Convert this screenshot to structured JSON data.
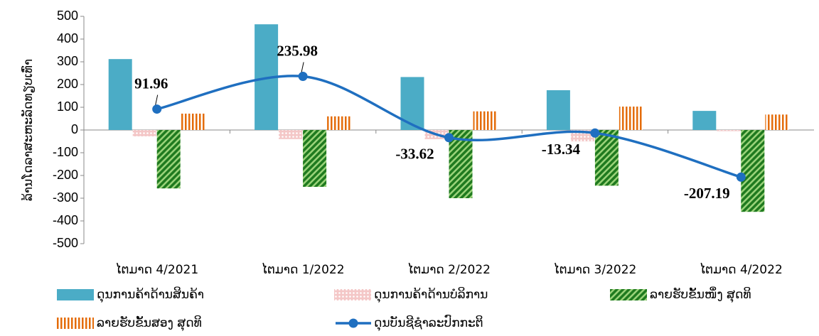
{
  "chart_data": {
    "type": "bar",
    "y_label": "ລ້ານໂດລາສະຫະລັດທຽບເທົ່າ",
    "categories": [
      "ໄຕມາດ 4/2021",
      "ໄຕມາດ 1/2022",
      "ໄຕມາດ 2/2022",
      "ໄຕມາດ 3/2022",
      "ໄຕມາດ 4/2022"
    ],
    "series": [
      {
        "name": "ດຸນການຄ້າດ້ານສິນຄ້າ",
        "color": "#4bacc6",
        "pattern": "solid",
        "values": [
          312,
          465,
          233,
          175,
          84
        ]
      },
      {
        "name": "ດຸນການຄ້າດ້ານບໍລິການ",
        "color": "#e6a0a0",
        "pattern": "dots",
        "values": [
          -28,
          -40,
          -40,
          -50,
          -5
        ]
      },
      {
        "name": "ລາຍຮັບຂັ້ນໜຶ່ງ ສຸດທິ",
        "color": "#339933",
        "pattern": "diagonal",
        "values": [
          -257,
          -250,
          -300,
          -245,
          -360
        ]
      },
      {
        "name": "ລາຍຮັບຂັ້ນສອງ ສຸດທິ",
        "color": "#f79646",
        "pattern": "vertical",
        "values": [
          72,
          60,
          82,
          103,
          68
        ]
      },
      {
        "name": "ດຸນບັນຊີຊຳລະປົກກະຕິ",
        "color": "#1f6fc0",
        "type": "line",
        "values": [
          91.96,
          235.98,
          -33.62,
          -13.34,
          -207.19
        ]
      }
    ],
    "ylim": [
      -500,
      500
    ],
    "yticks": [
      -500,
      -400,
      -300,
      -200,
      -100,
      0,
      100,
      200,
      300,
      400,
      500
    ]
  }
}
